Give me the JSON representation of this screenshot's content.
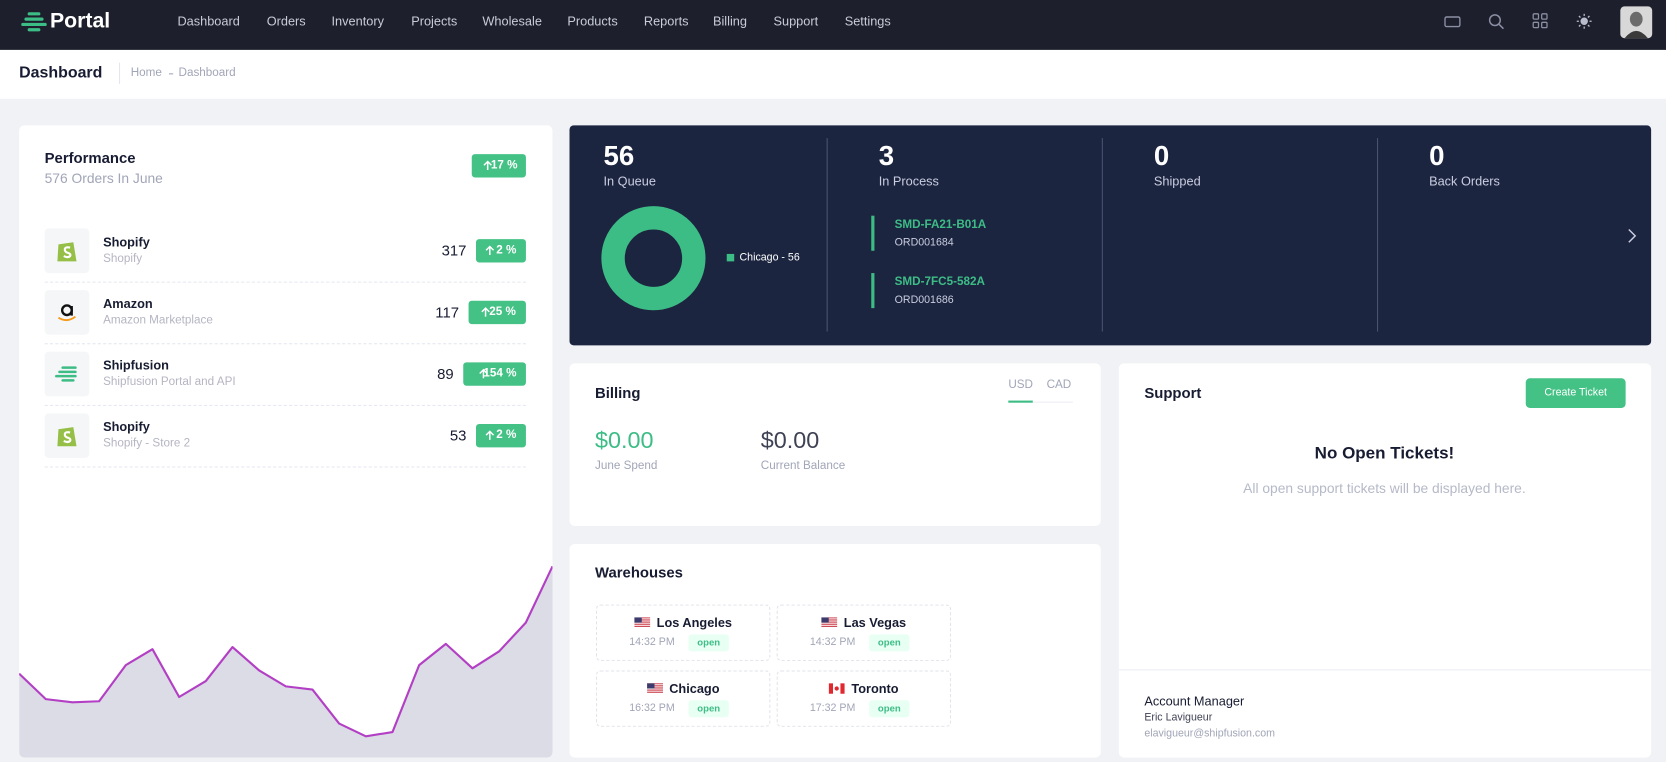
{
  "nav": {
    "brand": "Portal",
    "items": [
      "Dashboard",
      "Orders",
      "Inventory",
      "Projects",
      "Wholesale",
      "Products",
      "Reports",
      "Billing",
      "Support",
      "Settings"
    ]
  },
  "header": {
    "title": "Dashboard",
    "breadcrumb": [
      "Home",
      "Dashboard"
    ]
  },
  "performance": {
    "title": "Performance",
    "subtitle": "576 Orders In June",
    "change": "17 %",
    "channels": [
      {
        "name": "Shopify",
        "sub": "Shopify",
        "count": 317,
        "change": "2 %"
      },
      {
        "name": "Amazon",
        "sub": "Amazon Marketplace",
        "count": 117,
        "change": "25 %"
      },
      {
        "name": "Shipfusion",
        "sub": "Shipfusion Portal and API",
        "count": 89,
        "change": "154 %"
      },
      {
        "name": "Shopify",
        "sub": "Shopify - Store 2",
        "count": 53,
        "change": "2 %"
      }
    ],
    "trend": [
      79,
      55,
      52,
      53,
      87,
      102,
      57,
      72,
      104,
      82,
      67,
      64,
      32,
      20,
      24,
      87,
      107,
      84,
      100,
      127,
      180
    ]
  },
  "status": {
    "stats": [
      {
        "value": 56,
        "label": "In Queue"
      },
      {
        "value": 3,
        "label": "In Process"
      },
      {
        "value": 0,
        "label": "Shipped"
      },
      {
        "value": 0,
        "label": "Back Orders"
      }
    ],
    "queue_chart": {
      "values": [
        56
      ],
      "labels": [
        "Chicago - 56"
      ],
      "colors": [
        "#3dbd86"
      ]
    },
    "in_process": [
      {
        "code": "SMD-FA21-B01A",
        "order": "ORD001684"
      },
      {
        "code": "SMD-7FC5-582A",
        "order": "ORD001686"
      }
    ]
  },
  "billing": {
    "title": "Billing",
    "currencies": [
      "USD",
      "CAD"
    ],
    "amounts": [
      {
        "value": "$0.00",
        "label": "June Spend"
      },
      {
        "value": "$0.00",
        "label": "Current Balance"
      }
    ]
  },
  "warehouses": {
    "title": "Warehouses",
    "items": [
      {
        "name": "Los Angeles",
        "time": "14:32 PM",
        "status": "open"
      },
      {
        "name": "Las Vegas",
        "time": "14:32 PM",
        "status": "open"
      },
      {
        "name": "Chicago",
        "time": "16:32 PM",
        "status": "open"
      },
      {
        "name": "Toronto",
        "time": "17:32 PM",
        "status": "open"
      }
    ]
  },
  "support": {
    "title": "Support",
    "button": "Create Ticket",
    "heading": "No Open Tickets!",
    "message": "All open support tickets will be displayed here.",
    "manager": {
      "label": "Account Manager",
      "name": "Eric Lavigueur",
      "email": "elavigueur@shipfusion.com"
    }
  }
}
